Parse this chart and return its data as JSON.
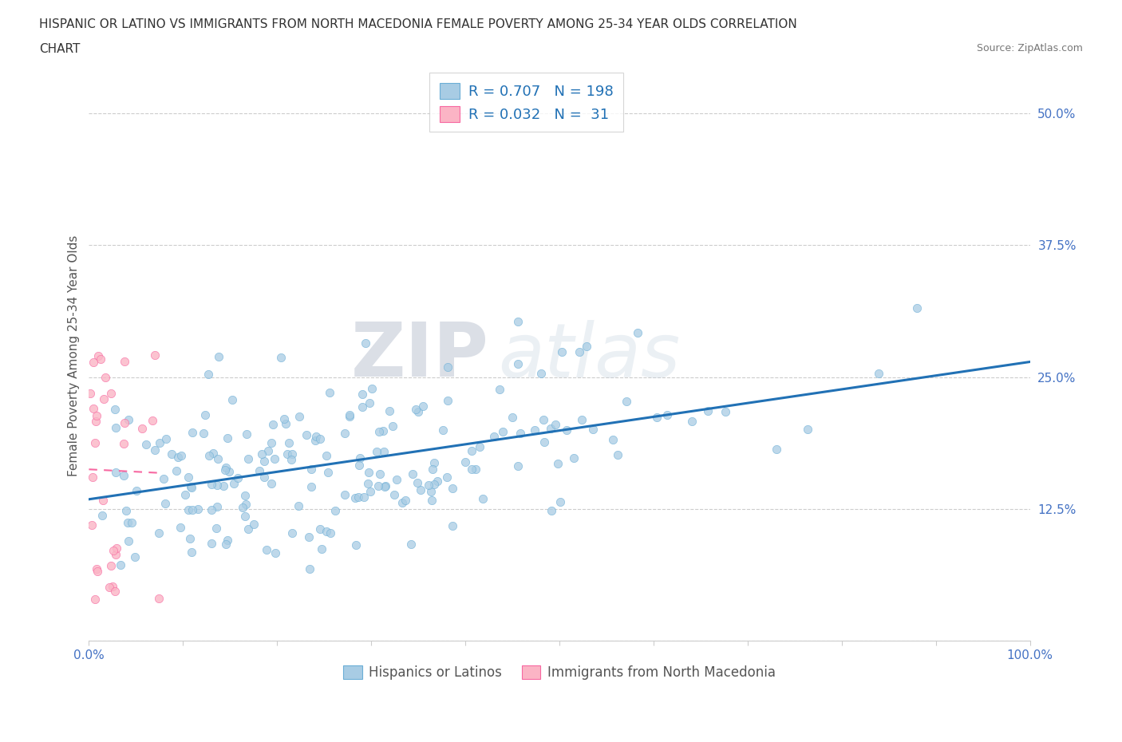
{
  "title_line1": "HISPANIC OR LATINO VS IMMIGRANTS FROM NORTH MACEDONIA FEMALE POVERTY AMONG 25-34 YEAR OLDS CORRELATION",
  "title_line2": "CHART",
  "source_text": "Source: ZipAtlas.com",
  "watermark_zip": "ZIP",
  "watermark_atlas": "atlas",
  "xlabel": "",
  "ylabel": "Female Poverty Among 25-34 Year Olds",
  "xlim": [
    0.0,
    1.0
  ],
  "ylim": [
    0.0,
    0.54
  ],
  "xticks": [
    0.0,
    0.1,
    0.2,
    0.3,
    0.4,
    0.5,
    0.6,
    0.7,
    0.8,
    0.9,
    1.0
  ],
  "xticklabels": [
    "0.0%",
    "",
    "",
    "",
    "",
    "",
    "",
    "",
    "",
    "",
    "100.0%"
  ],
  "yticks": [
    0.0,
    0.125,
    0.25,
    0.375,
    0.5
  ],
  "yticklabels": [
    "",
    "12.5%",
    "25.0%",
    "37.5%",
    "50.0%"
  ],
  "blue_color": "#a8cce4",
  "blue_edge_color": "#6baed6",
  "pink_color": "#fbb4c5",
  "pink_edge_color": "#f768a1",
  "blue_line_color": "#2171b5",
  "pink_line_color": "#f768a1",
  "axis_label_color": "#4472c4",
  "legend_text_color": "#2171b5",
  "tick_color": "#4472c4",
  "R_blue": 0.707,
  "N_blue": 198,
  "R_pink": 0.032,
  "N_pink": 31,
  "marker_size": 55,
  "grid_color": "#cccccc",
  "grid_linestyle": "--",
  "background_color": "#ffffff",
  "legend_label_blue": "Hispanics or Latinos",
  "legend_label_pink": "Immigrants from North Macedonia"
}
